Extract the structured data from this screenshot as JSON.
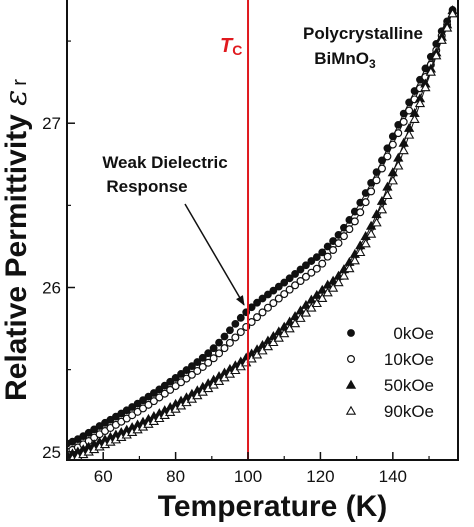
{
  "chart_data": {
    "type": "scatter",
    "title": "",
    "xlabel": "Temperature (K)",
    "ylabel": "Relative Permittivity ε r",
    "ylabel_main": "Relative Permittivity ",
    "ylabel_symbol": "ε",
    "ylabel_sub": "r",
    "xlim": [
      50,
      158
    ],
    "ylim": [
      24.95,
      27.75
    ],
    "xticks": [
      60,
      80,
      100,
      120,
      140
    ],
    "yticks": [
      25,
      26,
      27
    ],
    "tc_label": "T",
    "tc_sub": "C",
    "tc_value": 100,
    "tc_color": "#e0191e",
    "annotation_sample": [
      "Polycrystalline",
      "BiMnO"
    ],
    "annotation_sample_sub": "3",
    "annotation_weak": [
      "Weak Dielectric",
      "Response"
    ],
    "annotation_weak_target": [
      100,
      25.87
    ],
    "legend_position": "lower-right",
    "series": [
      {
        "name": "0kOe",
        "marker": "circle-filled",
        "x": [
          50,
          60,
          70,
          80,
          90,
          100,
          110,
          120,
          125,
          130,
          135,
          140,
          145,
          150,
          155,
          157
        ],
        "y": [
          25.05,
          25.17,
          25.3,
          25.45,
          25.62,
          25.86,
          26.03,
          26.2,
          26.32,
          26.48,
          26.68,
          26.92,
          27.15,
          27.38,
          27.62,
          27.7
        ]
      },
      {
        "name": "10kOe",
        "marker": "circle-open",
        "x": [
          50,
          60,
          70,
          80,
          90,
          100,
          110,
          120,
          125,
          130,
          135,
          140,
          145,
          150,
          155,
          157
        ],
        "y": [
          25.0,
          25.12,
          25.25,
          25.4,
          25.56,
          25.77,
          25.96,
          26.13,
          26.27,
          26.42,
          26.63,
          26.87,
          27.1,
          27.33,
          27.6,
          27.68
        ]
      },
      {
        "name": "50kOe",
        "marker": "triangle-filled",
        "x": [
          50,
          60,
          70,
          80,
          90,
          100,
          110,
          120,
          125,
          130,
          135,
          140,
          145,
          150,
          155,
          157
        ],
        "y": [
          24.98,
          25.07,
          25.17,
          25.29,
          25.43,
          25.58,
          25.76,
          25.97,
          26.07,
          26.22,
          26.42,
          26.7,
          27.0,
          27.3,
          27.6,
          27.7
        ]
      },
      {
        "name": "90kOe",
        "marker": "triangle-open",
        "x": [
          50,
          60,
          70,
          80,
          90,
          100,
          110,
          120,
          125,
          130,
          135,
          140,
          145,
          150,
          155,
          157
        ],
        "y": [
          24.95,
          25.04,
          25.14,
          25.26,
          25.4,
          25.55,
          25.72,
          25.92,
          26.03,
          26.18,
          26.37,
          26.65,
          26.96,
          27.28,
          27.58,
          27.68
        ]
      }
    ]
  }
}
